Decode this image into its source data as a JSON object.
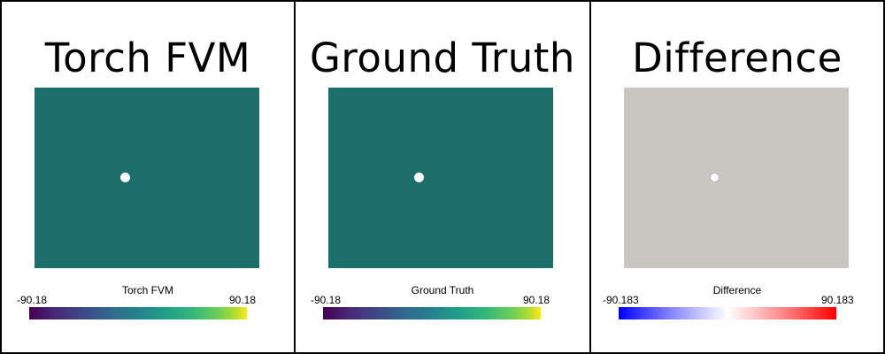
{
  "panels": [
    {
      "title": "Torch FVM",
      "field_color": "#1c6e6a",
      "colorbar": {
        "title": "Torch FVM",
        "min": "-90.18",
        "max": "90.18",
        "colormap": "viridis"
      }
    },
    {
      "title": "Ground Truth",
      "field_color": "#1c6e6a",
      "colorbar": {
        "title": "Ground Truth",
        "min": "-90.18",
        "max": "90.18",
        "colormap": "viridis"
      }
    },
    {
      "title": "Difference",
      "field_color": "#c9c5c0",
      "colorbar": {
        "title": "Difference",
        "min": "-90.183",
        "max": "90.183",
        "colormap": "blue-white-red"
      }
    }
  ],
  "colors": {
    "border": "#000000",
    "hole": "#ffffff"
  }
}
